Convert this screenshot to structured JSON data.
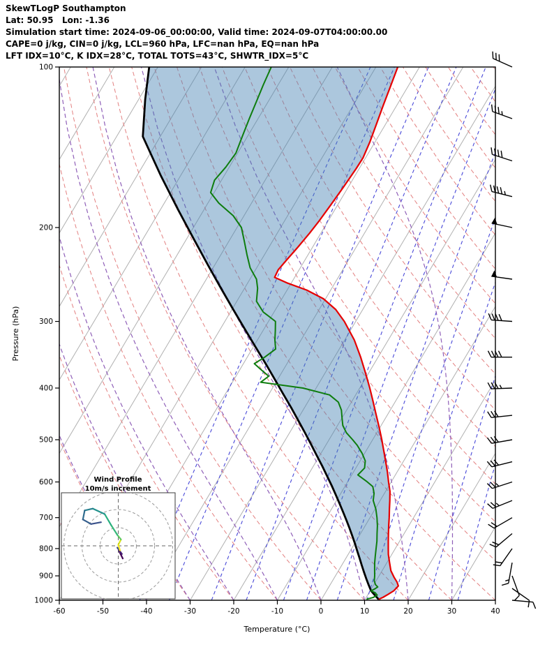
{
  "header": {
    "line1": "SkewTLogP Southampton",
    "line2": "Lat: 50.95   Lon: -1.36",
    "line3": "Simulation start time: 2024-09-06_00:00:00, Valid time: 2024-09-07T04:00:00.00",
    "line4": "CAPE=0 j/kg, CIN=0 j/kg, LCL=960 hPa, LFC=nan hPa, EQ=nan hPa",
    "line5": "LFT IDX=10°C, K IDX=28°C, TOTAL TOTS=43°C, SHWTR_IDX=5°C"
  },
  "axes": {
    "x_label": "Temperature (°C)",
    "y_label": "Pressure (hPa)",
    "x_ticks": [
      -60,
      -50,
      -40,
      -30,
      -20,
      -10,
      0,
      10,
      20,
      30,
      40
    ],
    "y_ticks": [
      100,
      200,
      300,
      400,
      500,
      600,
      700,
      800,
      900,
      1000
    ],
    "x_range": [
      -60,
      40
    ],
    "pressure_range": [
      1000,
      100
    ]
  },
  "inset": {
    "title1": "Wind Profile",
    "title2": "10m/s increment",
    "ring_increment_ms": 10
  },
  "colors": {
    "temperature": "#e60000",
    "dewpoint": "#0e7d0e",
    "parcel": "#000000",
    "shade_fill": "#4682b4",
    "shade_opacity": 0.45,
    "isotherm": "#b0b0b0",
    "dry_adiabat": "#e38080",
    "moist_adiabat": "#8f5fb8",
    "mixing_ratio": "#4848d8",
    "barb": "#000000"
  },
  "chart_data": {
    "type": "line",
    "subtype": "skew_t_log_p",
    "title": "SkewTLogP Southampton",
    "station": {
      "lat": 50.95,
      "lon": -1.36
    },
    "times": {
      "simulation_start": "2024-09-06_00:00:00",
      "valid": "2024-09-07T04:00:00.00"
    },
    "indices": {
      "CAPE_j_kg": 0,
      "CIN_j_kg": 0,
      "LCL_hPa": 960,
      "LFC_hPa": "nan",
      "EQ_hPa": "nan",
      "LFT_IDX_C": 10,
      "K_IDX_C": 28,
      "TOTAL_TOTS_C": 43,
      "SHWTR_IDX_C": 5
    },
    "temperature_profile": {
      "name": "Temperature",
      "color_key": "temperature",
      "points": [
        [
          995,
          13.2
        ],
        [
          988,
          13.8
        ],
        [
          975,
          14.6
        ],
        [
          960,
          15.4
        ],
        [
          940,
          15.8
        ],
        [
          925,
          15.0
        ],
        [
          905,
          13.6
        ],
        [
          880,
          12.0
        ],
        [
          850,
          10.6
        ],
        [
          820,
          9.2
        ],
        [
          800,
          8.4
        ],
        [
          775,
          7.4
        ],
        [
          750,
          6.4
        ],
        [
          725,
          5.4
        ],
        [
          700,
          4.4
        ],
        [
          675,
          3.3
        ],
        [
          650,
          2.2
        ],
        [
          625,
          1.0
        ],
        [
          600,
          -0.6
        ],
        [
          575,
          -2.2
        ],
        [
          550,
          -4.0
        ],
        [
          525,
          -5.9
        ],
        [
          500,
          -7.9
        ],
        [
          475,
          -10.1
        ],
        [
          450,
          -12.5
        ],
        [
          425,
          -15.0
        ],
        [
          400,
          -17.7
        ],
        [
          375,
          -20.7
        ],
        [
          350,
          -24.0
        ],
        [
          325,
          -27.8
        ],
        [
          300,
          -32.6
        ],
        [
          285,
          -36.2
        ],
        [
          272,
          -40.5
        ],
        [
          262,
          -45.5
        ],
        [
          254,
          -51.0
        ],
        [
          248,
          -54.6
        ],
        [
          240,
          -54.8
        ],
        [
          230,
          -54.2
        ],
        [
          218,
          -53.4
        ],
        [
          205,
          -52.6
        ],
        [
          195,
          -52.1
        ],
        [
          182,
          -51.6
        ],
        [
          168,
          -51.1
        ],
        [
          155,
          -50.7
        ],
        [
          148,
          -50.6
        ],
        [
          138,
          -51.2
        ],
        [
          128,
          -52.1
        ],
        [
          118,
          -53.1
        ],
        [
          108,
          -54.1
        ],
        [
          100,
          -55.0
        ]
      ]
    },
    "dewpoint_profile": {
      "name": "Dewpoint",
      "color_key": "dewpoint",
      "points": [
        [
          995,
          10.4
        ],
        [
          988,
          11.6
        ],
        [
          978,
          12.2
        ],
        [
          968,
          11.4
        ],
        [
          960,
          10.2
        ],
        [
          952,
          10.8
        ],
        [
          944,
          11.2
        ],
        [
          935,
          10.4
        ],
        [
          920,
          9.6
        ],
        [
          900,
          9.0
        ],
        [
          875,
          8.1
        ],
        [
          850,
          7.2
        ],
        [
          825,
          6.4
        ],
        [
          800,
          5.6
        ],
        [
          775,
          4.8
        ],
        [
          750,
          3.8
        ],
        [
          725,
          2.8
        ],
        [
          700,
          1.6
        ],
        [
          675,
          0.2
        ],
        [
          650,
          -1.6
        ],
        [
          630,
          -2.4
        ],
        [
          612,
          -3.6
        ],
        [
          598,
          -5.8
        ],
        [
          582,
          -8.6
        ],
        [
          565,
          -8.0
        ],
        [
          548,
          -8.8
        ],
        [
          530,
          -10.6
        ],
        [
          512,
          -12.8
        ],
        [
          500,
          -14.6
        ],
        [
          485,
          -17.0
        ],
        [
          470,
          -18.8
        ],
        [
          455,
          -20.0
        ],
        [
          440,
          -21.2
        ],
        [
          425,
          -23.0
        ],
        [
          412,
          -26.0
        ],
        [
          400,
          -33.0
        ],
        [
          390,
          -43.5
        ],
        [
          380,
          -42.5
        ],
        [
          370,
          -45.0
        ],
        [
          360,
          -47.5
        ],
        [
          350,
          -46.0
        ],
        [
          338,
          -44.6
        ],
        [
          325,
          -46.0
        ],
        [
          312,
          -47.2
        ],
        [
          300,
          -48.4
        ],
        [
          288,
          -52.5
        ],
        [
          275,
          -55.5
        ],
        [
          260,
          -57.0
        ],
        [
          250,
          -58.5
        ],
        [
          238,
          -61.5
        ],
        [
          225,
          -64.0
        ],
        [
          212,
          -66.5
        ],
        [
          200,
          -69.0
        ],
        [
          190,
          -72.5
        ],
        [
          180,
          -77.5
        ],
        [
          172,
          -80.8
        ],
        [
          163,
          -81.6
        ],
        [
          154,
          -80.8
        ],
        [
          145,
          -80.4
        ],
        [
          135,
          -81.2
        ],
        [
          125,
          -82.0
        ],
        [
          115,
          -82.8
        ],
        [
          108,
          -83.4
        ],
        [
          100,
          -84.0
        ]
      ]
    },
    "parcel_profile": {
      "name": "Parcel path",
      "color_key": "parcel",
      "points": [
        [
          1000,
          13.4
        ],
        [
          975,
          11.4
        ],
        [
          960,
          10.2
        ],
        [
          935,
          8.8
        ],
        [
          910,
          7.4
        ],
        [
          885,
          6.0
        ],
        [
          860,
          4.6
        ],
        [
          835,
          3.2
        ],
        [
          810,
          1.7
        ],
        [
          785,
          0.2
        ],
        [
          760,
          -1.4
        ],
        [
          735,
          -3.1
        ],
        [
          710,
          -4.9
        ],
        [
          685,
          -6.8
        ],
        [
          660,
          -8.8
        ],
        [
          635,
          -10.9
        ],
        [
          610,
          -13.1
        ],
        [
          585,
          -15.5
        ],
        [
          560,
          -18.0
        ],
        [
          535,
          -20.7
        ],
        [
          510,
          -23.5
        ],
        [
          485,
          -26.5
        ],
        [
          460,
          -29.7
        ],
        [
          435,
          -33.1
        ],
        [
          410,
          -36.8
        ],
        [
          385,
          -40.7
        ],
        [
          360,
          -44.9
        ],
        [
          335,
          -49.5
        ],
        [
          310,
          -54.4
        ],
        [
          285,
          -59.7
        ],
        [
          260,
          -65.4
        ],
        [
          235,
          -71.6
        ],
        [
          210,
          -78.4
        ],
        [
          185,
          -86.0
        ],
        [
          160,
          -94.5
        ],
        [
          135,
          -104.0
        ],
        [
          115,
          -108.5
        ],
        [
          100,
          -112.0
        ]
      ]
    },
    "wind_barbs": {
      "format": [
        "pressure_hPa",
        "speed_kt",
        "direction_deg"
      ],
      "values": [
        [
          1000,
          10,
          95
        ],
        [
          950,
          12,
          125
        ],
        [
          900,
          12,
          160
        ],
        [
          850,
          15,
          190
        ],
        [
          800,
          18,
          215
        ],
        [
          750,
          20,
          230
        ],
        [
          700,
          22,
          240
        ],
        [
          650,
          24,
          248
        ],
        [
          600,
          25,
          252
        ],
        [
          550,
          28,
          256
        ],
        [
          500,
          30,
          260
        ],
        [
          450,
          32,
          264
        ],
        [
          400,
          35,
          268
        ],
        [
          350,
          38,
          270
        ],
        [
          300,
          42,
          274
        ],
        [
          250,
          48,
          278
        ],
        [
          200,
          50,
          282
        ],
        [
          175,
          46,
          284
        ],
        [
          150,
          40,
          288
        ],
        [
          125,
          34,
          290
        ],
        [
          100,
          28,
          294
        ]
      ]
    },
    "hodograph": {
      "points_ms": [
        [
          2.5,
          -7.0
        ],
        [
          0.5,
          -3.0
        ],
        [
          2.0,
          -4.5
        ],
        [
          -0.5,
          -1.0
        ],
        [
          1.0,
          -2.5
        ],
        [
          0.0,
          0.5
        ],
        [
          1.5,
          3.5
        ],
        [
          -0.5,
          6.0
        ],
        [
          -4.0,
          11.5
        ],
        [
          -7.5,
          17.5
        ],
        [
          -14.0,
          20.5
        ],
        [
          -18.5,
          19.5
        ],
        [
          -19.5,
          14.5
        ],
        [
          -15.0,
          12.0
        ],
        [
          -9.5,
          13.0
        ]
      ],
      "segment_colors": [
        "#440154",
        "#471365",
        "#482475",
        "#3b518b",
        "#fde725",
        "#d8e219",
        "#5ec962",
        "#35b779",
        "#28ae80",
        "#21918c",
        "#27808e",
        "#2f6c8e",
        "#355f8d",
        "#3b528b"
      ]
    },
    "background": {
      "isotherms": {
        "units": "°C",
        "values": [
          -130,
          -120,
          -110,
          -100,
          -90,
          -80,
          -70,
          -60,
          -50,
          -40,
          -30,
          -20,
          -10,
          0,
          10,
          20,
          30,
          40
        ]
      },
      "dry_adiabats": {
        "units": "°C",
        "values": [
          -60,
          -50,
          -40,
          -30,
          -20,
          -10,
          0,
          10,
          20,
          30,
          40,
          50,
          60,
          70,
          80,
          90,
          100,
          110,
          120,
          130,
          140,
          150,
          160,
          170,
          180,
          190
        ]
      },
      "moist_adiabats": {
        "units": "°C",
        "values": [
          -60,
          -50,
          -40,
          -30,
          -20,
          -10,
          0,
          10,
          20,
          30
        ]
      },
      "mixing_ratio": {
        "units": "g/kg",
        "values": [
          0.1,
          0.2,
          0.5,
          1,
          2,
          3,
          5,
          8,
          12,
          20,
          30
        ]
      }
    }
  }
}
